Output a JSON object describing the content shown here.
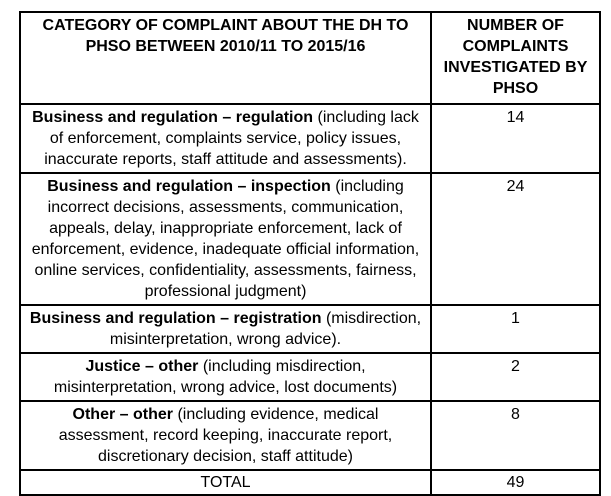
{
  "colors": {
    "border": "#000000",
    "text": "#000000",
    "background": "#ffffff"
  },
  "table": {
    "headers": {
      "category": "CATEGORY OF COMPLAINT ABOUT THE DH TO PHSO BETWEEN 2010/11 TO 2015/16",
      "number": "NUMBER OF COMPLAINTS INVESTIGATED BY PHSO"
    },
    "rows": [
      {
        "category_bold": "Business and regulation – regulation",
        "category_rest": " (including lack of enforcement, complaints service, policy issues, inaccurate reports, staff attitude and assessments).",
        "value": "14"
      },
      {
        "category_bold": "Business and regulation – inspection",
        "category_rest": " (including incorrect decisions, assessments, communication, appeals, delay, inappropriate enforcement, lack of enforcement, evidence, inadequate official information, online services, confidentiality, assessments, fairness, professional judgment)",
        "value": "24"
      },
      {
        "category_bold": "Business and regulation – registration",
        "category_rest": " (misdirection, misinterpretation, wrong advice).",
        "value": "1"
      },
      {
        "category_bold": "Justice – other",
        "category_rest": " (including misdirection, misinterpretation, wrong advice, lost documents)",
        "value": "2"
      },
      {
        "category_bold": "Other – other",
        "category_rest": " (including evidence, medical assessment, record keeping, inaccurate report, discretionary decision, staff attitude)",
        "value": "8"
      }
    ],
    "total": {
      "label": "TOTAL",
      "value": "49"
    }
  }
}
